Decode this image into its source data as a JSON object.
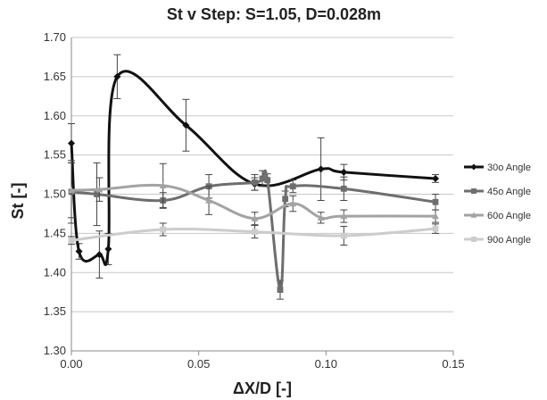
{
  "chart_data": {
    "type": "line",
    "title": "St v Step: S=1.05, D=0.028m",
    "xlabel": "ΔX/D [-]",
    "ylabel": "St [-]",
    "xlim": [
      0,
      0.15
    ],
    "ylim": [
      1.3,
      1.7
    ],
    "xticks": [
      "0.00",
      "0.05",
      "0.10",
      "0.15"
    ],
    "yticks": [
      "1.30",
      "1.35",
      "1.40",
      "1.45",
      "1.50",
      "1.55",
      "1.60",
      "1.65",
      "1.70"
    ],
    "grid": "horizontal",
    "legend_position": "right",
    "series": [
      {
        "name": "30o Angle",
        "color": "#111111",
        "marker": "diamond",
        "x": [
          0.0,
          0.003,
          0.011,
          0.0145,
          0.018,
          0.045,
          0.072,
          0.098,
          0.107,
          0.143
        ],
        "y": [
          1.565,
          1.427,
          1.423,
          1.43,
          1.65,
          1.588,
          1.513,
          1.532,
          1.528,
          1.52
        ],
        "err": [
          0.025,
          0.01,
          0.03,
          0.02,
          0.028,
          0.033,
          0.008,
          0.04,
          0.01,
          0.005
        ]
      },
      {
        "name": "45o Angle",
        "color": "#6e6e6e",
        "marker": "square",
        "x": [
          0.0,
          0.01,
          0.036,
          0.054,
          0.072,
          0.075,
          0.077,
          0.082,
          0.084,
          0.087,
          0.107,
          0.143
        ],
        "y": [
          1.503,
          1.5,
          1.492,
          1.51,
          1.515,
          1.52,
          1.518,
          1.378,
          1.494,
          1.51,
          1.507,
          1.49
        ],
        "err": [
          0.04,
          0.04,
          0.01,
          0.015,
          0.01,
          0.01,
          0.008,
          0.012,
          0.01,
          0.008,
          0.015,
          0.01
        ]
      },
      {
        "name": "60o Angle",
        "color": "#a3a3a3",
        "marker": "triangle",
        "x": [
          0.0,
          0.011,
          0.036,
          0.054,
          0.072,
          0.087,
          0.098,
          0.107,
          0.143
        ],
        "y": [
          1.505,
          1.506,
          1.511,
          1.492,
          1.469,
          1.488,
          1.47,
          1.472,
          1.472
        ],
        "err": [
          0.035,
          0.015,
          0.028,
          0.018,
          0.008,
          0.01,
          0.007,
          0.008,
          0.008
        ]
      },
      {
        "name": "90o Angle",
        "color": "#cccccc",
        "marker": "square",
        "x": [
          0.0,
          0.036,
          0.072,
          0.107,
          0.143
        ],
        "y": [
          1.441,
          1.455,
          1.452,
          1.447,
          1.456
        ],
        "err": [
          0.005,
          0.008,
          0.008,
          0.012,
          0.006
        ]
      }
    ]
  }
}
